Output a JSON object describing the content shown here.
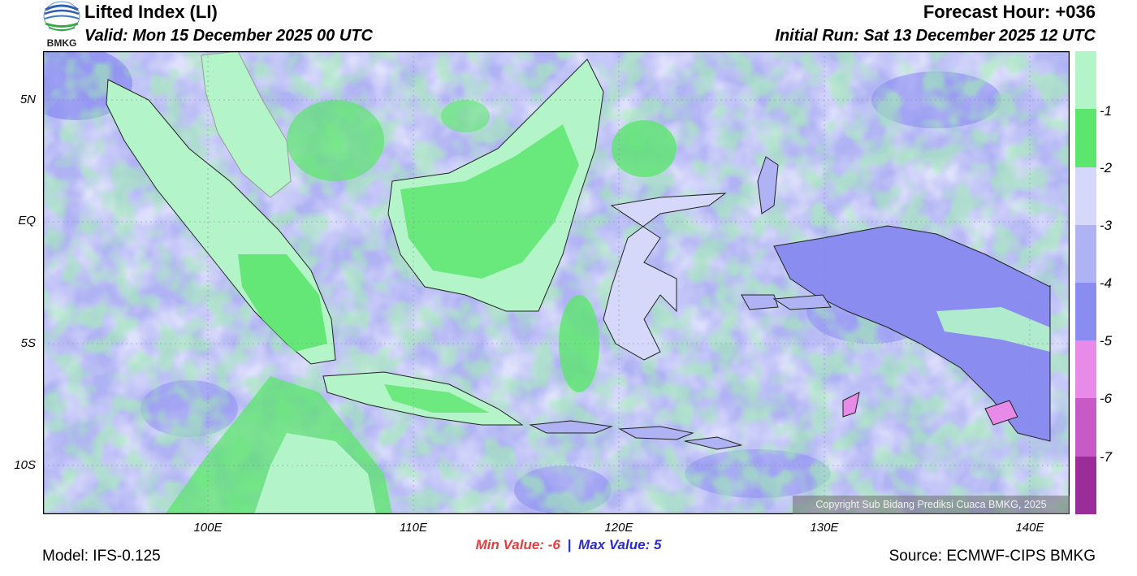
{
  "header": {
    "logo_text": "BMKG",
    "title": "Lifted Index (LI)",
    "valid": "Valid: Mon 15 December 2025 00 UTC",
    "forecast_hour": "Forecast Hour: +036",
    "initial_run": "Initial Run: Sat 13 December 2025 12 UTC"
  },
  "map": {
    "region": "Indonesia",
    "lat_range": [
      -12,
      7
    ],
    "lon_range": [
      92,
      142
    ],
    "y_ticks": [
      "5N",
      "EQ",
      "5S",
      "10S"
    ],
    "x_ticks": [
      "100E",
      "110E",
      "120E",
      "130E",
      "140E"
    ],
    "copyright": "Copyright Sub Bidang Prediksi Cuaca BMKG, 2025"
  },
  "colorbar": {
    "labels": [
      "-1",
      "-2",
      "-3",
      "-4",
      "-5",
      "-6",
      "-7"
    ],
    "colors": [
      "#b3f5c8",
      "#5ce66e",
      "#d6d8fa",
      "#b0b3f3",
      "#8a8cf0",
      "#e88ae8",
      "#c85ac8",
      "#9a2d9a"
    ]
  },
  "footer": {
    "min_label": "Min Value:",
    "min_value": "-6",
    "separator": "|",
    "max_label": "Max Value:",
    "max_value": "5",
    "model": "Model: IFS-0.125",
    "source": "Source: ECMWF-CIPS BMKG"
  }
}
